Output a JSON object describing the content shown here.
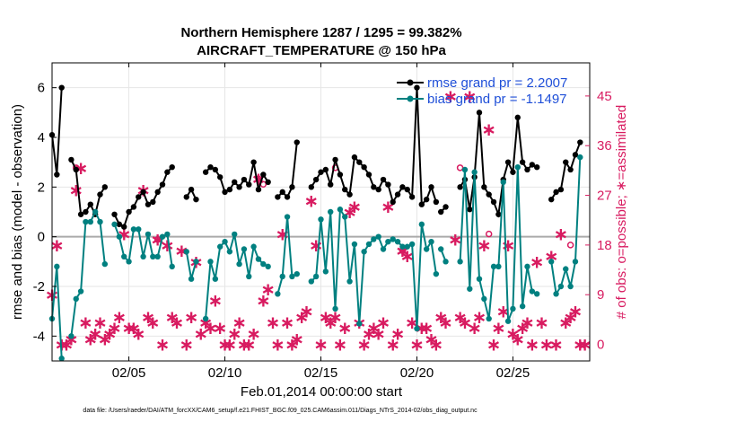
{
  "title_line1": "Northern Hemisphere 1287 / 1295 = 99.382%",
  "title_line2": "AIRCRAFT_TEMPERATURE @ 150 hPa",
  "footnote": "data file: /Users/raeder/DAI/ATM_forcXX/CAM6_setup/f.e21.FHIST_BGC.f09_025.CAM6assim.011/Diags_NTrS_2014-02/obs_diag_output.nc",
  "colors": {
    "rmse": "#000000",
    "bias": "#008080",
    "obs": "#D81B60",
    "legend_text": "#1F4FD8",
    "zero_line": "#AAAAAA"
  },
  "chart_data": {
    "type": "line",
    "title": "Northern Hemisphere 1287 / 1295 = 99.382% — AIRCRAFT_TEMPERATURE @ 150 hPa",
    "xlabel": "Feb.01,2014 00:00:00 start",
    "ylabel": "rmse and bias (model - observation)",
    "y2label": "# of obs: o=possible; ∗=assimilated",
    "xlim": [
      1,
      29
    ],
    "ylim": [
      -5,
      7
    ],
    "y2lim": [
      -3,
      51
    ],
    "x_ticks": [
      5,
      10,
      15,
      20,
      25
    ],
    "x_tick_labels": [
      "02/05",
      "02/10",
      "02/15",
      "02/20",
      "02/25"
    ],
    "y_ticks": [
      -4,
      -2,
      0,
      2,
      4,
      6
    ],
    "y_tick_labels": [
      "-4",
      "-2",
      "0",
      "2",
      "4",
      "6"
    ],
    "y2_ticks": [
      0,
      9,
      18,
      27,
      36,
      45
    ],
    "y2_tick_labels": [
      "0",
      "9",
      "18",
      "27",
      "36",
      "45"
    ],
    "legend": [
      "rmse grand pr = 2.2007",
      "bias grand pr = -1.1497"
    ],
    "series": [
      {
        "name": "rmse grand pr = 2.2007",
        "axis": "left",
        "segments": [
          {
            "x": [
              1.0,
              1.25,
              1.5
            ],
            "y": [
              4.1,
              2.5,
              6.0
            ]
          },
          {
            "x": [
              2.0,
              2.25,
              2.5,
              2.75,
              3.0,
              3.25,
              3.5,
              3.75
            ],
            "y": [
              3.1,
              2.7,
              0.9,
              1.0,
              1.3,
              0.9,
              1.7,
              2.0
            ]
          },
          {
            "x": [
              4.25,
              4.5,
              4.75,
              5.0,
              5.25,
              5.5,
              5.75,
              6.0,
              6.25,
              6.5,
              6.75,
              7.0,
              7.25
            ],
            "y": [
              0.9,
              0.5,
              0.4,
              1.0,
              1.2,
              1.6,
              1.8,
              1.3,
              1.4,
              1.8,
              2.1,
              2.6,
              2.8
            ]
          },
          {
            "x": [
              8.0,
              8.25,
              8.5
            ],
            "y": [
              1.6,
              1.9,
              1.5
            ]
          },
          {
            "x": [
              9.0,
              9.25,
              9.5,
              9.75,
              10.0,
              10.25,
              10.5,
              10.75,
              11.0,
              11.25,
              11.5,
              11.75,
              12.0,
              12.25
            ],
            "y": [
              2.6,
              2.8,
              2.7,
              2.4,
              1.8,
              1.9,
              2.2,
              2.0,
              2.3,
              2.1,
              3.0,
              1.9,
              2.5,
              2.2
            ]
          },
          {
            "x": [
              12.75,
              13.0,
              13.25,
              13.5,
              13.75
            ],
            "y": [
              1.6,
              1.8,
              1.6,
              2.0,
              3.8
            ]
          },
          {
            "x": [
              14.5,
              14.75,
              15.0,
              15.25,
              15.5,
              15.75,
              16.0,
              16.25,
              16.5,
              16.75,
              17.0,
              17.25,
              17.5,
              17.75,
              18.0,
              18.25,
              18.5,
              18.75,
              19.0,
              19.25,
              19.5,
              19.75,
              20.0,
              20.25,
              20.5,
              20.75,
              21.0
            ],
            "y": [
              2.0,
              2.3,
              2.6,
              2.7,
              2.1,
              3.1,
              2.5,
              1.9,
              1.7,
              3.2,
              3.0,
              2.8,
              2.5,
              2.0,
              1.9,
              2.3,
              2.1,
              1.4,
              1.7,
              2.0,
              1.9,
              1.6,
              6.0,
              1.3,
              1.5,
              2.0,
              1.4
            ]
          },
          {
            "x": [
              21.25,
              21.5
            ],
            "y": [
              1.0,
              1.2
            ]
          },
          {
            "x": [
              22.25,
              22.5,
              22.75,
              23.0,
              23.25,
              23.5,
              23.75,
              24.0,
              24.25,
              24.5,
              24.75,
              25.0,
              25.25,
              25.5,
              25.75,
              26.0,
              26.25
            ],
            "y": [
              2.0,
              2.3,
              1.1,
              2.4,
              5.0,
              2.0,
              1.7,
              1.4,
              0.9,
              2.3,
              3.0,
              2.6,
              4.8,
              3.0,
              2.7,
              2.9,
              2.8
            ]
          },
          {
            "x": [
              27.0,
              27.25,
              27.5,
              27.75,
              28.0,
              28.25,
              28.5
            ],
            "y": [
              1.5,
              1.8,
              1.9,
              3.0,
              2.7,
              3.3,
              3.8
            ]
          }
        ]
      },
      {
        "name": "bias grand pr = -1.1497",
        "axis": "left",
        "segments": [
          {
            "x": [
              1.0,
              1.25,
              1.5
            ],
            "y": [
              -3.3,
              -1.2,
              -4.9
            ]
          },
          {
            "x": [
              2.0,
              2.25,
              2.5,
              2.75,
              3.0,
              3.25,
              3.5,
              3.75
            ],
            "y": [
              -4.0,
              -2.5,
              -2.2,
              0.6,
              0.6,
              1.0,
              0.6,
              -1.1
            ]
          },
          {
            "x": [
              4.25,
              4.5,
              4.75,
              5.0,
              5.25,
              5.5,
              5.75,
              6.0,
              6.25,
              6.5,
              6.75,
              7.0,
              7.25
            ],
            "y": [
              0.5,
              0.0,
              -0.8,
              -1.0,
              0.3,
              0.3,
              -0.8,
              0.1,
              -0.8,
              -0.8,
              0.0,
              0.1,
              -1.2
            ]
          },
          {
            "x": [
              8.0,
              8.25,
              8.5
            ],
            "y": [
              -0.6,
              -1.7,
              -1.0
            ]
          },
          {
            "x": [
              9.0,
              9.25,
              9.5,
              9.75,
              10.0,
              10.25,
              10.5,
              10.75,
              11.0,
              11.25,
              11.5,
              11.75,
              12.0,
              12.25
            ],
            "y": [
              -3.3,
              -1.0,
              -1.7,
              -0.4,
              -0.2,
              -0.6,
              0.1,
              -1.1,
              -0.5,
              -1.6,
              -0.4,
              -0.9,
              -1.1,
              -1.2
            ]
          },
          {
            "x": [
              12.75,
              13.0,
              13.25,
              13.5,
              13.75
            ],
            "y": [
              -2.3,
              -1.6,
              0.8,
              -1.6,
              -1.5
            ]
          },
          {
            "x": [
              14.5,
              14.75,
              15.0,
              15.25,
              15.5,
              15.75,
              16.0,
              16.25,
              16.5,
              16.75,
              17.0,
              17.25,
              17.5,
              17.75,
              18.0,
              18.25,
              18.5,
              18.75,
              19.0,
              19.25,
              19.5,
              19.75,
              20.0,
              20.25,
              20.5,
              20.75,
              21.0
            ],
            "y": [
              -1.8,
              -1.6,
              0.7,
              -1.4,
              1.0,
              -2.9,
              1.1,
              0.8,
              -1.8,
              -0.3,
              -3.5,
              -0.6,
              -0.3,
              -0.1,
              0.0,
              -0.5,
              -0.2,
              -0.1,
              -0.2,
              -0.4,
              -0.4,
              -0.3,
              -3.7,
              0.5,
              -0.5,
              -0.2,
              -1.5
            ]
          },
          {
            "x": [
              21.25,
              21.5
            ],
            "y": [
              -0.5,
              -1.0
            ]
          },
          {
            "x": [
              22.25,
              22.5,
              22.75,
              23.0,
              23.25,
              23.5,
              23.75,
              24.0,
              24.25,
              24.5,
              24.75,
              25.0,
              25.25,
              25.5,
              25.75,
              26.0,
              26.25
            ],
            "y": [
              -1.0,
              2.7,
              -2.1,
              2.6,
              -1.7,
              -2.5,
              -3.3,
              -1.2,
              -1.2,
              2.2,
              -3.4,
              -2.9,
              2.8,
              -2.8,
              -1.2,
              -2.2,
              -2.3
            ]
          },
          {
            "x": [
              27.0,
              27.25,
              27.5,
              27.75,
              28.0,
              28.25,
              28.5
            ],
            "y": [
              -1.0,
              -2.3,
              -2.0,
              -1.3,
              -2.0,
              -1.0,
              3.2
            ]
          }
        ]
      },
      {
        "name": "# of obs assimilated (∗)",
        "axis": "right",
        "x": [
          1.0,
          1.25,
          1.5,
          1.75,
          2.0,
          2.25,
          2.5,
          2.75,
          3.0,
          3.25,
          3.5,
          3.75,
          4.0,
          4.25,
          4.5,
          4.75,
          5.0,
          5.25,
          5.5,
          5.75,
          6.0,
          6.25,
          6.5,
          6.75,
          7.0,
          7.25,
          7.5,
          7.75,
          8.0,
          8.25,
          8.5,
          8.75,
          9.0,
          9.25,
          9.5,
          9.75,
          10.0,
          10.25,
          10.5,
          10.75,
          11.0,
          11.25,
          11.5,
          11.75,
          12.0,
          12.25,
          12.5,
          12.75,
          13.0,
          13.25,
          13.5,
          13.75,
          14.0,
          14.25,
          14.5,
          14.75,
          15.0,
          15.25,
          15.5,
          15.75,
          16.0,
          16.25,
          16.5,
          16.75,
          17.0,
          17.25,
          17.5,
          17.75,
          18.0,
          18.25,
          18.5,
          18.75,
          19.0,
          19.25,
          19.5,
          19.75,
          20.0,
          20.25,
          20.5,
          20.75,
          21.0,
          21.25,
          21.5,
          21.75,
          22.0,
          22.25,
          22.5,
          22.75,
          23.0,
          23.25,
          23.5,
          23.75,
          24.0,
          24.25,
          24.5,
          24.75,
          25.0,
          25.25,
          25.5,
          25.75,
          26.0,
          26.25,
          26.5,
          26.75,
          27.0,
          27.25,
          27.5,
          27.75,
          28.0,
          28.25,
          28.5,
          28.75
        ],
        "y": [
          9,
          18,
          0,
          0,
          1,
          28,
          32,
          4,
          1,
          2,
          4,
          1,
          2,
          3,
          5,
          20,
          3,
          3,
          2,
          28,
          5,
          4,
          19,
          0,
          18,
          5,
          4,
          17,
          0,
          5,
          15,
          2,
          4,
          3,
          8,
          3,
          0,
          0,
          2,
          4,
          0,
          0,
          2,
          30,
          8,
          10,
          4,
          0,
          20,
          4,
          0,
          1,
          5,
          6,
          26,
          18,
          0,
          5,
          4,
          5,
          0,
          3,
          24,
          25,
          4,
          0,
          2,
          3,
          2,
          4,
          25,
          0,
          2,
          17,
          16,
          4,
          0,
          3,
          3,
          1,
          0,
          5,
          4,
          45,
          19,
          5,
          4,
          45,
          3,
          5,
          18,
          39,
          0,
          3,
          6,
          18,
          2,
          1,
          3,
          4,
          0,
          15,
          4,
          0,
          16,
          0,
          20,
          4,
          5,
          6,
          0,
          0
        ],
        "marker": "asterisk"
      },
      {
        "name": "# of obs possible (o)",
        "axis": "right",
        "x": [
          2.25,
          6.5,
          11.75,
          12.0,
          15.75,
          19.25,
          22.25,
          23.75,
          28.0
        ],
        "y": [
          32,
          19,
          30,
          29,
          32,
          17,
          32,
          20,
          18
        ],
        "marker": "circle"
      }
    ]
  }
}
